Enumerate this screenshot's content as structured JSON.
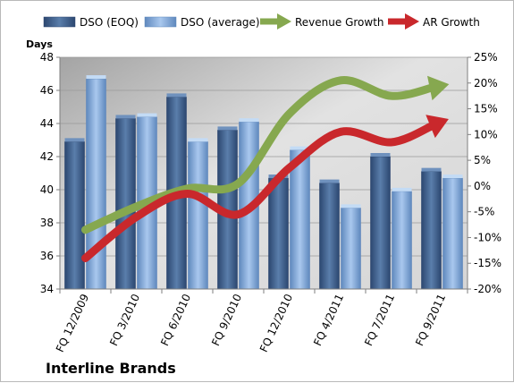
{
  "chart_data": {
    "type": "bar",
    "title": "Interline Brands",
    "ylabel": "Days",
    "categories": [
      "FQ 12/2009",
      "FQ 3/2010",
      "FQ 6/2010",
      "FQ 9/2010",
      "FQ 12/2010",
      "FQ 4/2011",
      "FQ 7/2011",
      "FQ 9/2011"
    ],
    "ylim": [
      34,
      48
    ],
    "y_ticks": [
      "34",
      "36",
      "38",
      "40",
      "42",
      "44",
      "46",
      "48"
    ],
    "y2lim": [
      -0.2,
      0.25
    ],
    "y2_ticks": [
      "-20%",
      "-15%",
      "-10%",
      "-5%",
      "0%",
      "5%",
      "10%",
      "15%",
      "20%",
      "25%"
    ],
    "grid": true,
    "legend_position": "top",
    "series": [
      {
        "name": "DSO (EOQ)",
        "kind": "bar",
        "axis": "left",
        "color": "#4a6b96",
        "values": [
          42.9,
          44.3,
          45.6,
          43.6,
          40.7,
          40.4,
          42.0,
          41.1
        ]
      },
      {
        "name": "DSO (average)",
        "kind": "bar",
        "axis": "left",
        "color": "#92b3dc",
        "values": [
          46.7,
          44.4,
          42.9,
          44.1,
          42.4,
          38.9,
          39.9,
          40.7
        ]
      },
      {
        "name": "Revenue Growth",
        "kind": "line",
        "axis": "right",
        "color": "#86a84f",
        "values": [
          -0.085,
          -0.04,
          -0.005,
          0.005,
          0.14,
          0.205,
          0.175,
          0.195
        ]
      },
      {
        "name": "AR Growth",
        "kind": "line",
        "axis": "right",
        "color": "#c9282c",
        "values": [
          -0.14,
          -0.06,
          -0.015,
          -0.055,
          0.035,
          0.105,
          0.085,
          0.125
        ]
      }
    ]
  }
}
